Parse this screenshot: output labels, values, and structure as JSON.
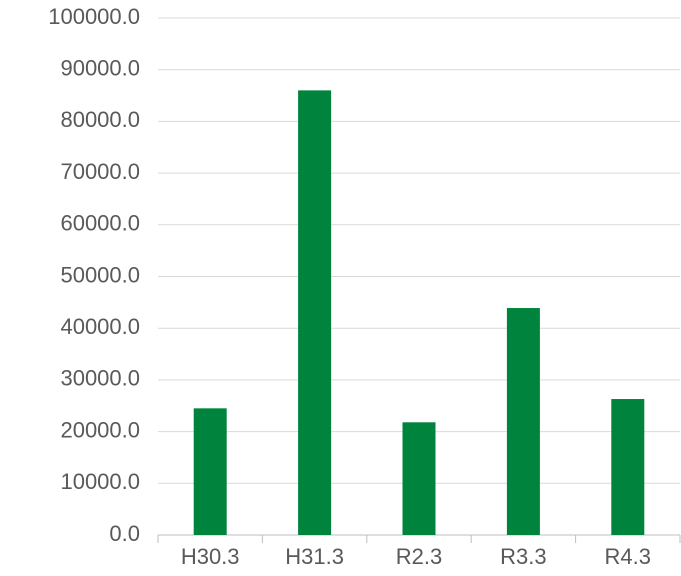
{
  "chart_data": {
    "type": "bar",
    "categories": [
      "H30.3",
      "H31.3",
      "R2.3",
      "R3.3",
      "R4.3"
    ],
    "values": [
      24500,
      86000,
      21800,
      43900,
      26300
    ],
    "color": "#00843d",
    "ylim": [
      0,
      100000
    ],
    "yticks": [
      {
        "value": 0,
        "label": "0.0"
      },
      {
        "value": 10000,
        "label": "10000.0"
      },
      {
        "value": 20000,
        "label": "20000.0"
      },
      {
        "value": 30000,
        "label": "30000.0"
      },
      {
        "value": 40000,
        "label": "40000.0"
      },
      {
        "value": 50000,
        "label": "50000.0"
      },
      {
        "value": 60000,
        "label": "60000.0"
      },
      {
        "value": 70000,
        "label": "70000.0"
      },
      {
        "value": 80000,
        "label": "80000.0"
      },
      {
        "value": 90000,
        "label": "90000.0"
      },
      {
        "value": 100000,
        "label": "100000.0"
      }
    ],
    "grid": true
  }
}
